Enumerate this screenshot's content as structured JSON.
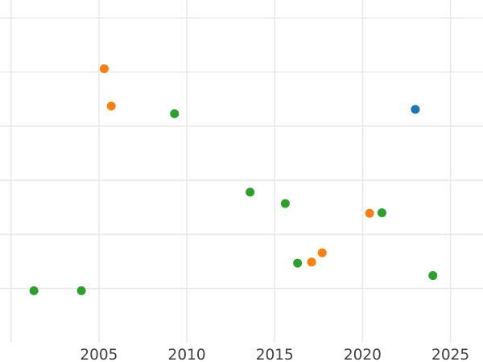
{
  "figure": {
    "background_color": "#ffffff",
    "grid_color": "#e9e9e9",
    "tick_label_color": "#3f3f3f"
  },
  "chart_data": {
    "type": "scatter",
    "title": "",
    "xlabel": "",
    "ylabel": "",
    "grid": true,
    "legend": false,
    "y_axis_labels_visible": false,
    "y_units": "gridline-units (y tick labels cropped out of view; 1 unit = one horizontal gridline spacing, 0 = bottom of plot area)",
    "xlim": [
      1999.37,
      2026.85
    ],
    "ylim": [
      0,
      6.33
    ],
    "x_ticks": [
      2005,
      2010,
      2015,
      2020,
      2025
    ],
    "x_tick_labels": [
      "2005",
      "2010",
      "2015",
      "2020",
      "2025"
    ],
    "x_gridlines": [
      2000,
      2005,
      2010,
      2015,
      2020,
      2025
    ],
    "y_gridlines": [
      1,
      2,
      3,
      4,
      5,
      6
    ],
    "series": [
      {
        "name": "green",
        "color": "#2ca02c",
        "points": [
          [
            2001.3,
            0.96
          ],
          [
            2004.0,
            0.96
          ],
          [
            2009.3,
            4.23
          ],
          [
            2013.6,
            2.78
          ],
          [
            2015.6,
            2.57
          ],
          [
            2016.3,
            1.47
          ],
          [
            2021.1,
            2.4
          ],
          [
            2024.0,
            1.24
          ]
        ]
      },
      {
        "name": "orange",
        "color": "#ff7f0e",
        "points": [
          [
            2005.3,
            5.06
          ],
          [
            2005.7,
            4.37
          ],
          [
            2017.1,
            1.49
          ],
          [
            2017.7,
            1.66
          ],
          [
            2020.4,
            2.39
          ]
        ]
      },
      {
        "name": "blue",
        "color": "#1f77b4",
        "points": [
          [
            2023.0,
            4.31
          ]
        ]
      }
    ]
  }
}
